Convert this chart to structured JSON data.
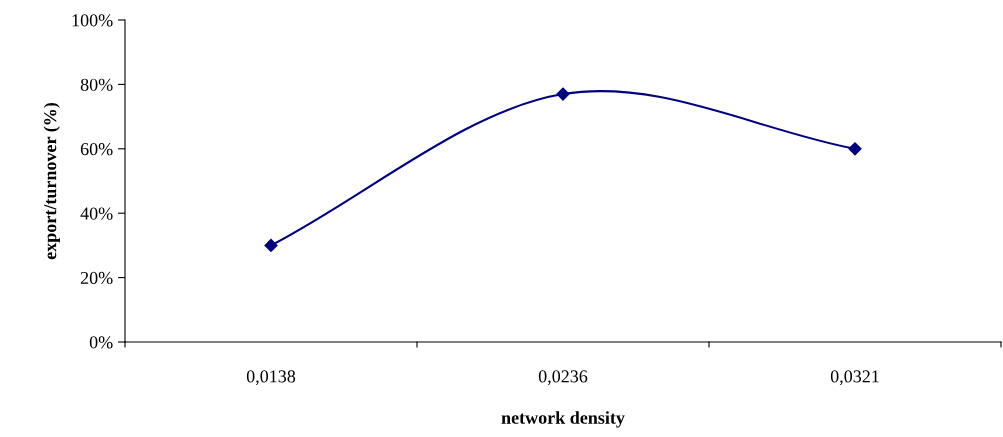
{
  "chart_data": {
    "type": "line",
    "xlabel": "network density",
    "ylabel": "export/turnover (%)",
    "categories": [
      "0,0138",
      "0,0236",
      "0,0321"
    ],
    "series": [
      {
        "color": "#000080",
        "values": [
          30,
          77,
          60
        ]
      }
    ],
    "ylim": [
      0,
      100
    ],
    "yticks": [
      {
        "value": 0,
        "label": "0%"
      },
      {
        "value": 20,
        "label": "20%"
      },
      {
        "value": 40,
        "label": "40%"
      },
      {
        "value": 60,
        "label": "60%"
      },
      {
        "value": 80,
        "label": "80%"
      },
      {
        "value": 100,
        "label": "100%"
      }
    ],
    "marker": "diamond",
    "line_style": "solid",
    "grid": false,
    "legend": false
  }
}
